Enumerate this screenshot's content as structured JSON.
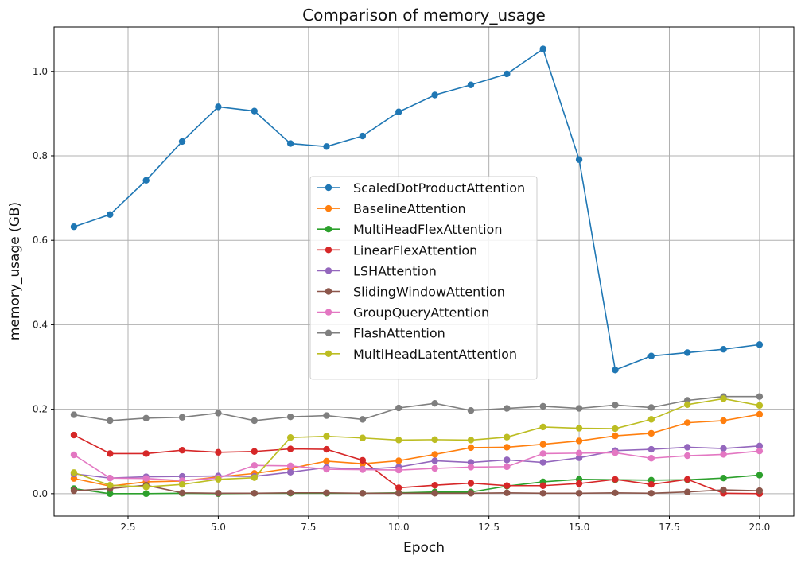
{
  "chart_data": {
    "type": "line",
    "title": "Comparison of memory_usage",
    "xlabel": "Epoch",
    "ylabel": "memory_usage (GB)",
    "xlim": [
      0.45,
      20.95
    ],
    "ylim": [
      -0.053,
      1.105
    ],
    "xticks": [
      2.5,
      5.0,
      7.5,
      10.0,
      12.5,
      15.0,
      17.5,
      20.0
    ],
    "xtick_labels": [
      "2.5",
      "5.0",
      "7.5",
      "10.0",
      "12.5",
      "15.0",
      "17.5",
      "20.0"
    ],
    "yticks": [
      0.0,
      0.2,
      0.4,
      0.6,
      0.8,
      1.0
    ],
    "ytick_labels": [
      "0.0",
      "0.2",
      "0.4",
      "0.6",
      "0.8",
      "1.0"
    ],
    "grid": true,
    "legend_position": "center",
    "x": [
      1,
      2,
      3,
      4,
      5,
      6,
      7,
      8,
      9,
      10,
      11,
      12,
      13,
      14,
      15,
      16,
      17,
      18,
      19,
      20
    ],
    "series": [
      {
        "name": "ScaledDotProductAttention",
        "color": "#1f77b4",
        "values": [
          0.632,
          0.661,
          0.742,
          0.834,
          0.916,
          0.906,
          0.829,
          0.822,
          0.847,
          0.904,
          0.944,
          0.968,
          0.994,
          1.053,
          0.791,
          0.293,
          0.326,
          0.334,
          0.342,
          0.353
        ]
      },
      {
        "name": "BaselineAttention",
        "color": "#ff7f0e",
        "values": [
          0.036,
          0.018,
          0.028,
          0.03,
          0.04,
          0.048,
          0.06,
          0.077,
          0.071,
          0.078,
          0.093,
          0.109,
          0.11,
          0.117,
          0.125,
          0.137,
          0.143,
          0.168,
          0.173,
          0.188
        ]
      },
      {
        "name": "MultiHeadFlexAttention",
        "color": "#2ca02c",
        "values": [
          0.012,
          0.0,
          0.0,
          0.001,
          0.0,
          0.001,
          0.001,
          0.001,
          0.001,
          0.002,
          0.004,
          0.004,
          0.018,
          0.028,
          0.034,
          0.033,
          0.032,
          0.033,
          0.037,
          0.044
        ]
      },
      {
        "name": "LinearFlexAttention",
        "color": "#d62728",
        "values": [
          0.139,
          0.095,
          0.095,
          0.103,
          0.098,
          0.1,
          0.106,
          0.105,
          0.079,
          0.014,
          0.02,
          0.025,
          0.019,
          0.019,
          0.024,
          0.034,
          0.022,
          0.034,
          0.001,
          0.0
        ]
      },
      {
        "name": "LSHAttention",
        "color": "#9467bd",
        "values": [
          0.047,
          0.037,
          0.04,
          0.041,
          0.042,
          0.041,
          0.051,
          0.062,
          0.058,
          0.063,
          0.078,
          0.074,
          0.08,
          0.074,
          0.085,
          0.102,
          0.105,
          0.11,
          0.107,
          0.113
        ]
      },
      {
        "name": "SlidingWindowAttention",
        "color": "#8c564b",
        "values": [
          0.007,
          0.012,
          0.02,
          0.002,
          0.001,
          0.001,
          0.002,
          0.002,
          0.001,
          0.001,
          0.001,
          0.001,
          0.002,
          0.001,
          0.001,
          0.002,
          0.001,
          0.004,
          0.009,
          0.007
        ]
      },
      {
        "name": "GroupQueryAttention",
        "color": "#e377c2",
        "values": [
          0.092,
          0.037,
          0.036,
          0.031,
          0.037,
          0.067,
          0.066,
          0.058,
          0.057,
          0.056,
          0.06,
          0.063,
          0.064,
          0.095,
          0.096,
          0.097,
          0.084,
          0.09,
          0.093,
          0.101
        ]
      },
      {
        "name": "FlashAttention",
        "color": "#7f7f7f",
        "values": [
          0.187,
          0.173,
          0.179,
          0.181,
          0.191,
          0.173,
          0.182,
          0.185,
          0.176,
          0.203,
          0.214,
          0.197,
          0.202,
          0.207,
          0.202,
          0.21,
          0.204,
          0.221,
          0.23,
          0.23
        ]
      },
      {
        "name": "MultiHeadLatentAttention",
        "color": "#bcbd22",
        "values": [
          0.05,
          0.02,
          0.016,
          0.022,
          0.034,
          0.038,
          0.133,
          0.136,
          0.132,
          0.127,
          0.128,
          0.127,
          0.134,
          0.158,
          0.155,
          0.154,
          0.176,
          0.211,
          0.225,
          0.209
        ]
      }
    ]
  }
}
